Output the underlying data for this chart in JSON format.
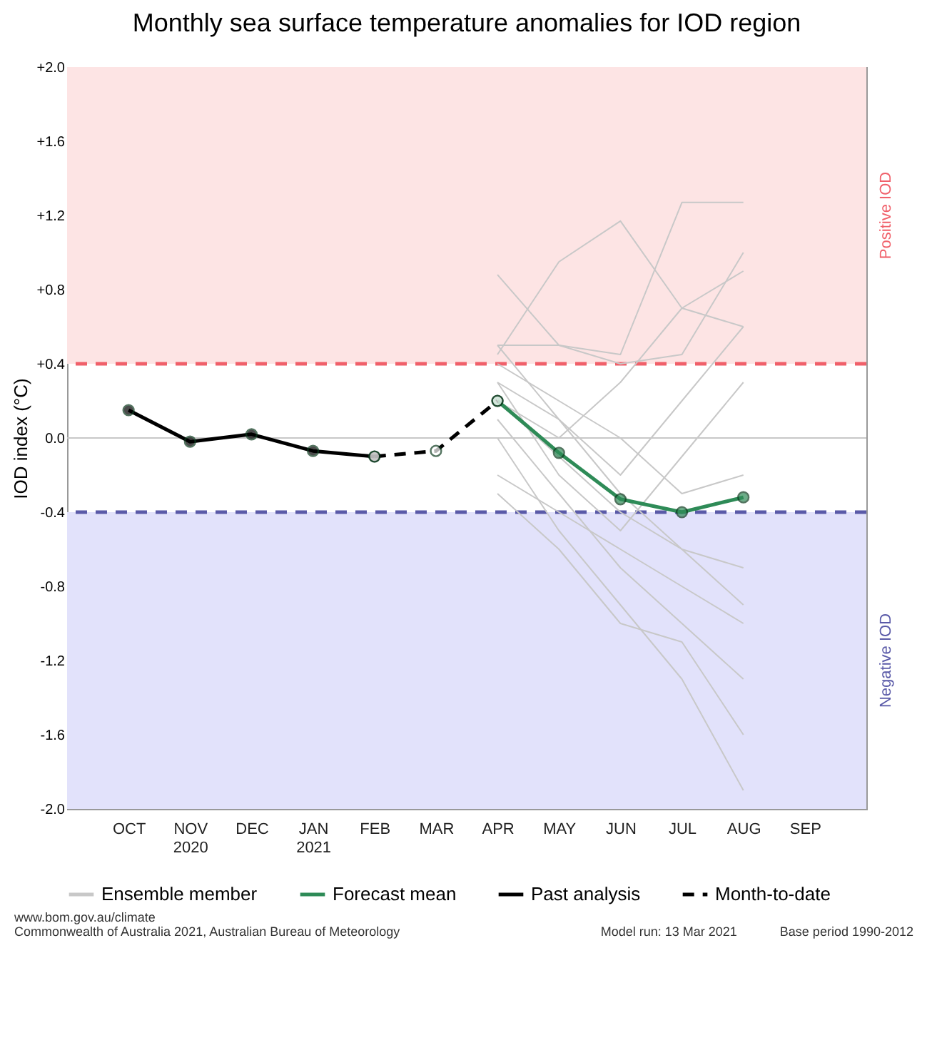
{
  "chart_data": {
    "type": "line",
    "title": "Monthly sea surface temperature anomalies for IOD region",
    "ylabel": "IOD index (°C)",
    "categories": [
      "OCT",
      "NOV 2020",
      "DEC",
      "JAN 2021",
      "FEB",
      "MAR",
      "APR",
      "MAY",
      "JUN",
      "JUL",
      "AUG",
      "SEP"
    ],
    "ylim": [
      -2.0,
      2.0
    ],
    "yticks": [
      {
        "value": -2.0,
        "label": "-2.0"
      },
      {
        "value": -1.6,
        "label": "-1.6"
      },
      {
        "value": -1.2,
        "label": "-1.2"
      },
      {
        "value": -0.8,
        "label": "-0.8"
      },
      {
        "value": -0.4,
        "label": "-0.4"
      },
      {
        "value": 0,
        "label": "0.0"
      },
      {
        "value": 0.4,
        "label": "+0.4"
      },
      {
        "value": 0.8,
        "label": "+0.8"
      },
      {
        "value": 1.2,
        "label": "+1.2"
      },
      {
        "value": 1.6,
        "label": "+1.6"
      },
      {
        "value": 2.0,
        "label": "+2.0"
      }
    ],
    "legend": "bottom",
    "grid": false,
    "bands": [
      {
        "axis": "y",
        "from": 0.4,
        "to": 2.0,
        "label": "Positive IOD",
        "color": "#fde4e4"
      },
      {
        "axis": "y",
        "from": -2.0,
        "to": -0.4,
        "label": "Negative IOD",
        "color": "#e2e2fb"
      }
    ],
    "ref_lines": [
      {
        "axis": "y",
        "value": 0,
        "color": "#c8c8c8",
        "line_style": "solid"
      },
      {
        "axis": "y",
        "value": 0.4,
        "color": "#f0606a",
        "line_style": "dashed"
      },
      {
        "axis": "y",
        "value": -0.4,
        "color": "#5a5aa8",
        "line_style": "dashed"
      }
    ],
    "series": [
      {
        "name": "Ensemble member",
        "color": "#c8c8c8",
        "marker": "none",
        "line_style": "solid",
        "values": [
          null,
          null,
          null,
          null,
          null,
          null,
          0.88,
          0.5,
          0.45,
          1.27,
          1.27,
          null
        ]
      },
      {
        "color": "#c8c8c8",
        "marker": "none",
        "line_style": "solid",
        "values": [
          null,
          null,
          null,
          null,
          null,
          null,
          0.45,
          0.95,
          1.17,
          0.7,
          0.6,
          null
        ]
      },
      {
        "color": "#c8c8c8",
        "marker": "none",
        "line_style": "solid",
        "values": [
          null,
          null,
          null,
          null,
          null,
          null,
          0.5,
          0.5,
          0.4,
          0.45,
          1.0,
          null
        ]
      },
      {
        "color": "#c8c8c8",
        "marker": "none",
        "line_style": "solid",
        "values": [
          null,
          null,
          null,
          null,
          null,
          null,
          0.3,
          0.1,
          -0.2,
          0.2,
          0.6,
          null
        ]
      },
      {
        "color": "#c8c8c8",
        "marker": "none",
        "line_style": "solid",
        "values": [
          null,
          null,
          null,
          null,
          null,
          null,
          0.2,
          -0.1,
          -0.4,
          -0.6,
          -0.9,
          null
        ]
      },
      {
        "color": "#c8c8c8",
        "marker": "none",
        "line_style": "solid",
        "values": [
          null,
          null,
          null,
          null,
          null,
          null,
          0.1,
          -0.3,
          -0.7,
          -1.0,
          -1.3,
          null
        ]
      },
      {
        "color": "#c8c8c8",
        "marker": "none",
        "line_style": "solid",
        "values": [
          null,
          null,
          null,
          null,
          null,
          null,
          0.0,
          -0.5,
          -0.9,
          -1.3,
          -1.9,
          null
        ]
      },
      {
        "color": "#c8c8c8",
        "marker": "none",
        "line_style": "solid",
        "values": [
          null,
          null,
          null,
          null,
          null,
          null,
          0.4,
          0.2,
          0.0,
          -0.3,
          -0.2,
          null
        ]
      },
      {
        "color": "#c8c8c8",
        "marker": "none",
        "line_style": "solid",
        "values": [
          null,
          null,
          null,
          null,
          null,
          null,
          -0.2,
          -0.4,
          -0.6,
          -0.8,
          -1.0,
          null
        ]
      },
      {
        "color": "#c8c8c8",
        "marker": "none",
        "line_style": "solid",
        "values": [
          null,
          null,
          null,
          null,
          null,
          null,
          0.3,
          -0.2,
          -0.5,
          -0.1,
          0.3,
          null
        ]
      },
      {
        "color": "#c8c8c8",
        "marker": "none",
        "line_style": "solid",
        "values": [
          null,
          null,
          null,
          null,
          null,
          null,
          0.5,
          0.1,
          -0.3,
          -0.6,
          -0.7,
          null
        ]
      },
      {
        "color": "#c8c8c8",
        "marker": "none",
        "line_style": "solid",
        "values": [
          null,
          null,
          null,
          null,
          null,
          null,
          -0.3,
          -0.6,
          -1.0,
          -1.1,
          -1.6,
          null
        ]
      },
      {
        "color": "#c8c8c8",
        "marker": "none",
        "line_style": "solid",
        "values": [
          null,
          null,
          null,
          null,
          null,
          null,
          0.2,
          0.0,
          0.3,
          0.7,
          0.9,
          null
        ]
      },
      {
        "name": "Forecast mean",
        "color": "#2e8b57",
        "marker": "circle",
        "line_style": "solid",
        "values": [
          null,
          null,
          null,
          null,
          null,
          null,
          0.2,
          -0.08,
          -0.33,
          -0.4,
          -0.32,
          null
        ]
      },
      {
        "name": "Past analysis",
        "color": "#000000",
        "marker": "circle",
        "line_style": "solid",
        "values": [
          0.15,
          -0.02,
          0.02,
          -0.07,
          -0.1,
          null,
          null,
          null,
          null,
          null,
          null,
          null
        ]
      },
      {
        "name": "Month-to-date",
        "color": "#000000",
        "marker": "circle",
        "line_style": "dashed",
        "values": [
          null,
          null,
          null,
          null,
          -0.1,
          -0.07,
          0.2,
          null,
          null,
          null,
          null,
          null
        ]
      }
    ],
    "annotations": [
      "www.bom.gov.au/climate",
      "Commonwealth of Australia 2021, Australian Bureau of Meteorology",
      "Model run: 13 Mar 2021",
      "Base period 1990-2012"
    ]
  }
}
